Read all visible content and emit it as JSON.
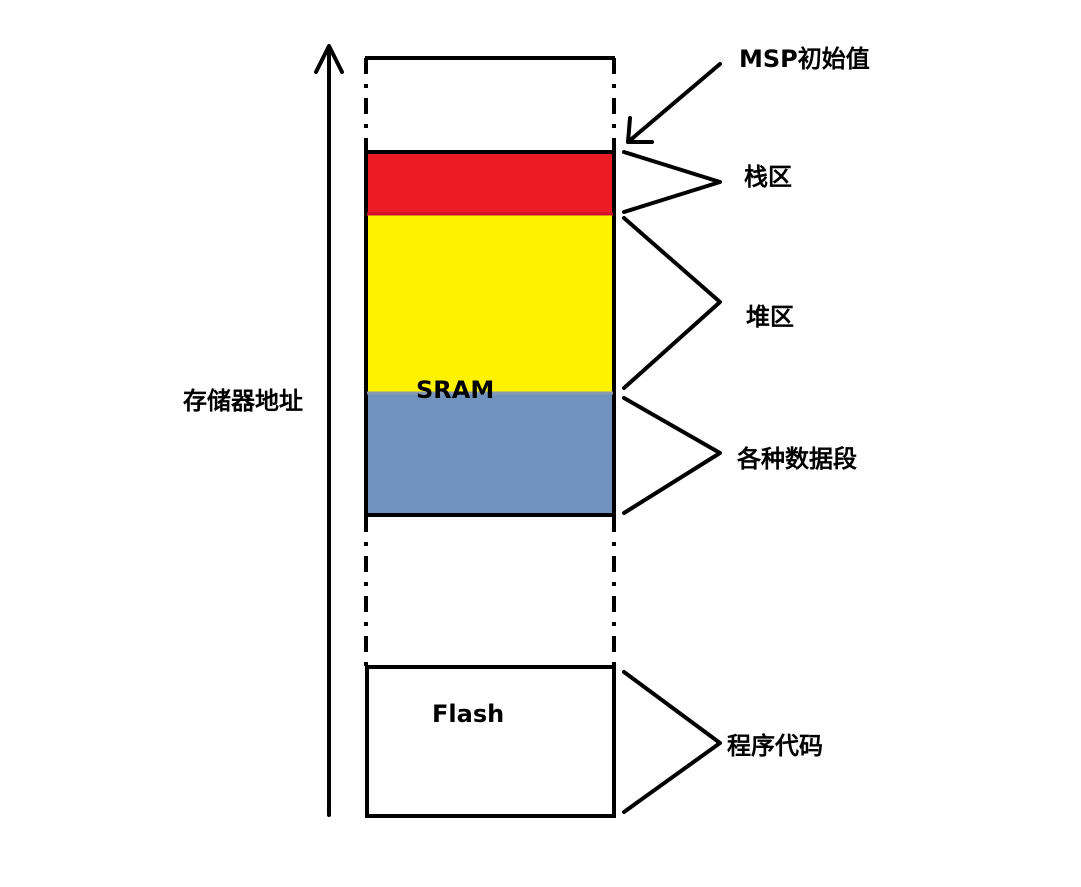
{
  "axis": {
    "label": "存储器地址"
  },
  "memory": {
    "sram_label": "SRAM",
    "flash_label": "Flash"
  },
  "annotations": {
    "msp_initial": "MSP初始值",
    "stack": "栈区",
    "heap": "堆区",
    "data_segments": "各种数据段",
    "program_code": "程序代码"
  },
  "colors": {
    "stack": "#ed1c24",
    "heap": "#fff200",
    "data": "#7092be",
    "outline": "#000000"
  }
}
